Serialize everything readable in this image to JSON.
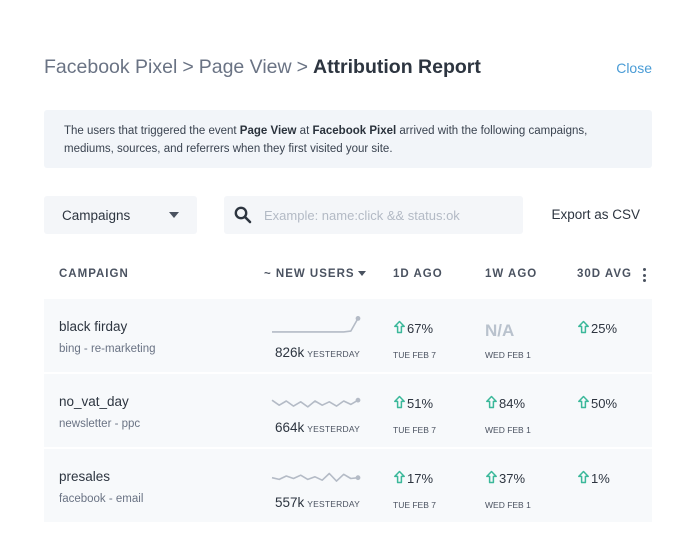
{
  "header": {
    "crumbs": [
      "Facebook Pixel",
      "Page View"
    ],
    "separator": ">",
    "current": "Attribution Report",
    "close_label": "Close"
  },
  "info": {
    "text_1": "The users that triggered the event ",
    "event": "Page View",
    "text_2": " at ",
    "source": "Facebook Pixel",
    "text_3": " arrived with the following campaigns, mediums, sources, and referrers when they first visited your site."
  },
  "toolbar": {
    "select_value": "Campaigns",
    "search_placeholder": "Example: name:click && status:ok",
    "export_label": "Export as CSV"
  },
  "table": {
    "columns": {
      "campaign": "CAMPAIGN",
      "new_users": "~ NEW USERS",
      "d1": "1D AGO",
      "w1": "1W AGO",
      "d30": "30D AVG"
    },
    "rows": [
      {
        "name": "black firday",
        "sub": "bing - re-marketing",
        "count": "826k",
        "count_unit": "YESTERDAY",
        "spark": [
          6,
          6,
          6,
          6,
          6,
          6,
          6,
          6,
          6,
          6,
          6,
          7,
          22
        ],
        "d1": "67%",
        "d1_date": "TUE FEB 7",
        "w1": "N/A",
        "w1_date": "WED FEB 1",
        "d30": "25%"
      },
      {
        "name": "no_vat_day",
        "sub": "newsletter - ppc",
        "count": "664k",
        "count_unit": "YESTERDAY",
        "spark": [
          14,
          8,
          13,
          7,
          12,
          6,
          13,
          8,
          12,
          7,
          13,
          9,
          14
        ],
        "d1": "51%",
        "d1_date": "TUE FEB 7",
        "w1": "84%",
        "w1_date": "WED FEB 1",
        "d30": "50%"
      },
      {
        "name": "presales",
        "sub": "facebook - email",
        "count": "557k",
        "count_unit": "YESTERDAY",
        "spark": [
          11,
          9,
          13,
          10,
          14,
          9,
          12,
          8,
          16,
          7,
          15,
          10,
          11
        ],
        "d1": "17%",
        "d1_date": "TUE FEB 7",
        "w1": "37%",
        "w1_date": "WED FEB 1",
        "d30": "1%"
      }
    ]
  },
  "colors": {
    "accent": "#4a9cd6",
    "up_arrow": "#3bb89a",
    "sparkline": "#b4bbc6",
    "row_bg": "#f7f9fb",
    "na": "#b9c2cd"
  },
  "icons": {
    "search": "search-icon",
    "up": "arrow-up-icon",
    "menu": "more-vertical-icon",
    "dropdown": "chevron-down-icon"
  }
}
